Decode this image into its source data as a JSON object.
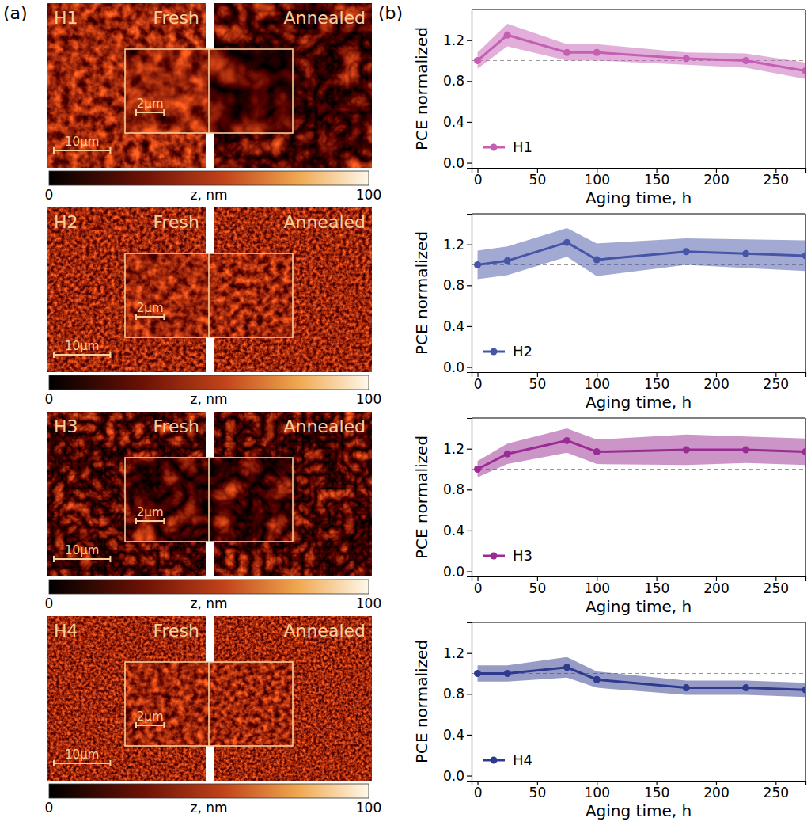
{
  "panel_labels": [
    "(a)",
    "(b)"
  ],
  "chart_data": [
    {
      "type": "image",
      "title": "H1",
      "labels": [
        "Fresh",
        "Annealed"
      ],
      "image_width_um": 28,
      "inset_width_um": 12,
      "scale_bars": [
        {
          "label": "10µm",
          "length": 10
        },
        {
          "label": "2µm",
          "length": 2
        }
      ],
      "colorbar": {
        "label": "z, nm",
        "range": [
          0,
          100
        ],
        "ticks": [
          0,
          100
        ]
      }
    },
    {
      "type": "image",
      "title": "H2",
      "labels": [
        "Fresh",
        "Annealed"
      ],
      "image_width_um": 28,
      "inset_width_um": 12,
      "scale_bars": [
        {
          "label": "10µm",
          "length": 10
        },
        {
          "label": "2µm",
          "length": 2
        }
      ],
      "colorbar": {
        "label": "z, nm",
        "range": [
          0,
          100
        ],
        "ticks": [
          0,
          100
        ]
      }
    },
    {
      "type": "image",
      "title": "H3",
      "labels": [
        "Fresh",
        "Annealed"
      ],
      "image_width_um": 28,
      "inset_width_um": 12,
      "scale_bars": [
        {
          "label": "10µm",
          "length": 10
        },
        {
          "label": "2µm",
          "length": 2
        }
      ],
      "colorbar": {
        "label": "z, nm",
        "range": [
          0,
          100
        ],
        "ticks": [
          0,
          100
        ]
      }
    },
    {
      "type": "image",
      "title": "H4",
      "labels": [
        "Fresh",
        "Annealed"
      ],
      "image_width_um": 28,
      "inset_width_um": 12,
      "scale_bars": [
        {
          "label": "10µm",
          "length": 10
        },
        {
          "label": "2µm",
          "length": 2
        }
      ],
      "colorbar": {
        "label": "z, nm",
        "range": [
          0,
          100
        ],
        "ticks": [
          0,
          100
        ]
      }
    },
    {
      "type": "line",
      "xlabel": "Aging time, h",
      "ylabel": "PCE normalized",
      "x": [
        0,
        25,
        75,
        100,
        175,
        225,
        275
      ],
      "series": [
        {
          "name": "H1",
          "color": "#c45fb3",
          "marker": "circle",
          "values": [
            1.0,
            1.25,
            1.08,
            1.08,
            1.02,
            1.0,
            0.9
          ],
          "errors": [
            0.08,
            0.11,
            0.08,
            0.08,
            0.06,
            0.07,
            0.08
          ]
        }
      ],
      "reference": 1.0,
      "xlim": [
        -5,
        275
      ],
      "ylim": [
        -0.05,
        1.5
      ],
      "xticks": [
        0,
        50,
        100,
        150,
        200,
        250
      ],
      "yticks": [
        {
          "value": 0,
          "label": "0.0"
        },
        0.4,
        0.8,
        1.2
      ],
      "legend": "lower left"
    },
    {
      "type": "line",
      "xlabel": "Aging time, h",
      "ylabel": "PCE normalized",
      "x": [
        0,
        25,
        75,
        100,
        175,
        225,
        275
      ],
      "series": [
        {
          "name": "H2",
          "color": "#4655a8",
          "marker": "circle",
          "values": [
            1.0,
            1.04,
            1.22,
            1.05,
            1.13,
            1.11,
            1.09
          ],
          "errors": [
            0.14,
            0.14,
            0.14,
            0.16,
            0.13,
            0.14,
            0.15
          ]
        }
      ],
      "reference": 1.0,
      "xlim": [
        -5,
        275
      ],
      "ylim": [
        -0.05,
        1.5
      ],
      "xticks": [
        0,
        50,
        100,
        150,
        200,
        250
      ],
      "yticks": [
        {
          "value": 0,
          "label": "0.0"
        },
        0.4,
        0.8,
        1.2
      ],
      "legend": "lower left"
    },
    {
      "type": "line",
      "xlabel": "Aging time, h",
      "ylabel": "PCE normalized",
      "x": [
        0,
        25,
        75,
        100,
        175,
        225,
        275
      ],
      "series": [
        {
          "name": "H3",
          "color": "#9a2b92",
          "marker": "circle",
          "values": [
            1.0,
            1.15,
            1.28,
            1.17,
            1.19,
            1.19,
            1.17
          ],
          "errors": [
            0.08,
            0.1,
            0.12,
            0.12,
            0.15,
            0.13,
            0.13
          ]
        }
      ],
      "reference": 1.0,
      "xlim": [
        -5,
        275
      ],
      "ylim": [
        -0.05,
        1.5
      ],
      "xticks": [
        0,
        50,
        100,
        150,
        200,
        250
      ],
      "yticks": [
        {
          "value": 0,
          "label": "0.0"
        },
        0.4,
        0.8,
        1.2
      ],
      "legend": "lower left"
    },
    {
      "type": "line",
      "xlabel": "Aging time, h",
      "ylabel": "PCE normalized",
      "x": [
        0,
        25,
        75,
        100,
        175,
        225,
        275
      ],
      "series": [
        {
          "name": "H4",
          "color": "#2e3a8e",
          "marker": "circle",
          "values": [
            1.0,
            1.0,
            1.06,
            0.94,
            0.86,
            0.86,
            0.84
          ],
          "errors": [
            0.08,
            0.08,
            0.1,
            0.08,
            0.07,
            0.07,
            0.07
          ]
        }
      ],
      "reference": 1.0,
      "xlim": [
        -5,
        275
      ],
      "ylim": [
        -0.05,
        1.5
      ],
      "xticks": [
        0,
        50,
        100,
        150,
        200,
        250
      ],
      "yticks": [
        {
          "value": 0,
          "label": "0.0"
        },
        0.4,
        0.8,
        1.2
      ],
      "legend": "lower left"
    }
  ]
}
